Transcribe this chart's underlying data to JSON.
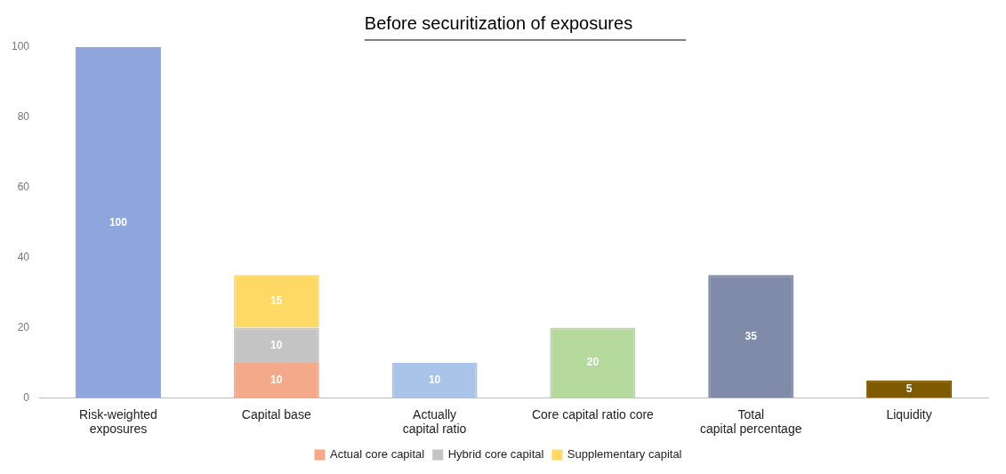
{
  "chart_data": {
    "type": "bar",
    "title": "Before securitization of exposures",
    "categories": [
      "Risk-weighted\nexposures",
      "Capital base",
      "Actually\ncapital ratio",
      "Core capital ratio core",
      "Total\ncapital percentage",
      "Liquidity"
    ],
    "stacked": true,
    "data_labels": true,
    "grid": false,
    "legend": "bottom",
    "ylim": [
      0,
      100
    ],
    "yticks": [
      0,
      20,
      40,
      60,
      80,
      100
    ],
    "series": [
      {
        "name": "Actual core capital",
        "color": "#f4a98a",
        "values": [
          null,
          10,
          null,
          null,
          null,
          null
        ]
      },
      {
        "name": "Hybrid core capital",
        "color": "#c4c4c4",
        "values": [
          null,
          10,
          null,
          null,
          null,
          null
        ]
      },
      {
        "name": "Supplementary capital",
        "color": "#ffd966",
        "values": [
          null,
          15,
          null,
          null,
          null,
          null
        ]
      },
      {
        "colors": [
          "#8fa6dc",
          "#ffffff",
          "#a9c4e8",
          "#b5d99c",
          "#7f8ba8",
          "#7f5a00"
        ],
        "values": [
          100,
          null,
          10,
          20,
          35,
          5
        ]
      }
    ]
  }
}
